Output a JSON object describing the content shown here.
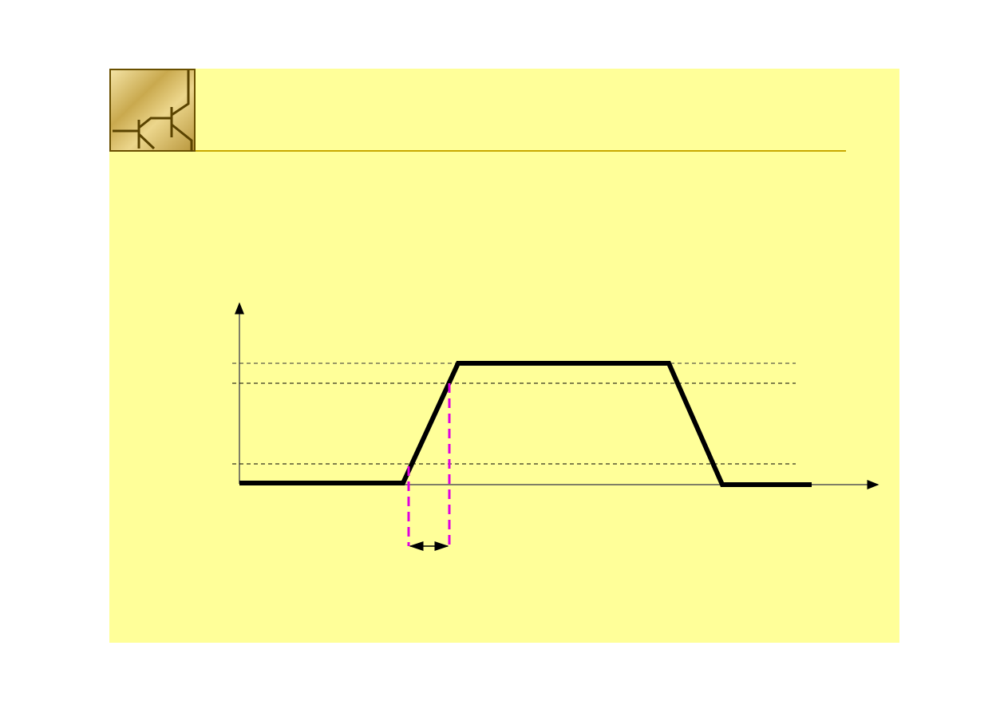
{
  "slide": {
    "background_color": "#ffff99",
    "header_rule_color": "#c8a800"
  },
  "logo": {
    "icon": "transistor-logo-icon",
    "colors": {
      "gold_light": "#f0dc96",
      "gold_dark": "#b49640",
      "line": "#5a4300"
    }
  },
  "diagram": {
    "type": "pulse-rise-time",
    "waveform_color": "#000000",
    "threshold_lines": 3,
    "measurement_marker_color": "#e000e0",
    "has_double_arrow": true
  }
}
